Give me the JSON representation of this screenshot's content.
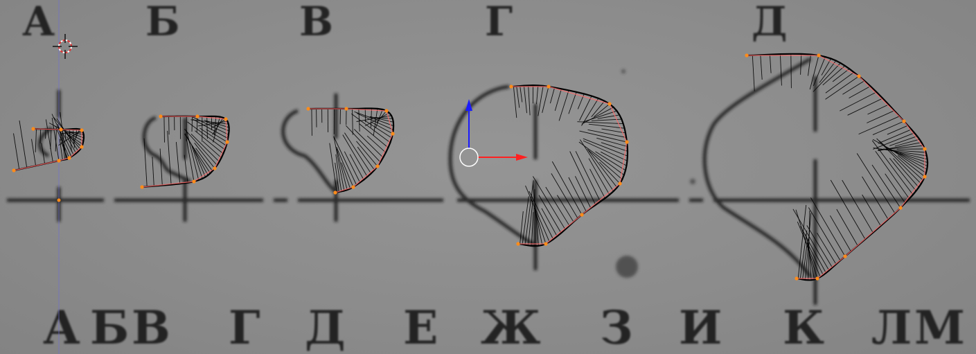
{
  "viewport": {
    "background": "#8c8c8c",
    "reference_line_color": "#1a1a1a",
    "curve_color": "#000000",
    "handle_color": "#ff6a6a",
    "control_point_color": "#ff8c1a",
    "axis_x_color": "#ff2020",
    "axis_z_color": "#1a1aff",
    "cursor_icon": "3d-cursor-icon",
    "gizmo_icon": "transform-gizmo-icon"
  },
  "labels": {
    "top": [
      "А",
      "Б",
      "В",
      "Г",
      "Д"
    ],
    "bottom": [
      "А",
      "Б",
      "В",
      "Г",
      "Д",
      "Е",
      "Ж",
      "З",
      "И",
      "К",
      "Л",
      "М"
    ]
  }
}
